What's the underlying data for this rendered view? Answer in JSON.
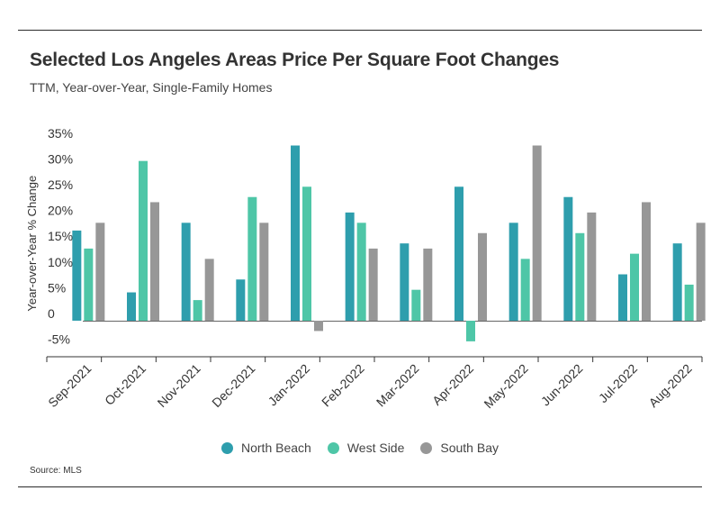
{
  "title": "Selected Los Angeles Areas Price Per Square Foot Changes",
  "subtitle": "TTM, Year-over-Year, Single-Family Homes",
  "source": "Source:  MLS",
  "colors": {
    "north_beach": "#2e9ead",
    "west_side": "#4ec6a7",
    "south_bay": "#979797",
    "axis": "#333333"
  },
  "chart_data": {
    "type": "bar",
    "ylabel": "Year-over-Year % Change",
    "ylim": [
      -7,
      37
    ],
    "yticks": [
      -5,
      0,
      5,
      10,
      15,
      20,
      25,
      30,
      35
    ],
    "ytick_labels": [
      "-5%",
      "0",
      "5%",
      "10%",
      "15%",
      "20%",
      "25%",
      "30%",
      "35%"
    ],
    "categories": [
      "Sep-2021",
      "Oct-2021",
      "Nov-2021",
      "Dec-2021",
      "Jan-2022",
      "Feb-2022",
      "Mar-2022",
      "Apr-2022",
      "May-2022",
      "Jun-2022",
      "Jul-2022",
      "Aug-2022"
    ],
    "series": [
      {
        "name": "North Beach",
        "color": "#2e9ead",
        "values": [
          17.5,
          5.5,
          19,
          8,
          34,
          21,
          15,
          26,
          19,
          24,
          9,
          15
        ]
      },
      {
        "name": "West Side",
        "color": "#4ec6a7",
        "values": [
          14,
          31,
          4,
          24,
          26,
          19,
          6,
          -4,
          12,
          17,
          13,
          7
        ]
      },
      {
        "name": "South Bay",
        "color": "#979797",
        "values": [
          19,
          23,
          12,
          19,
          -2,
          14,
          14,
          17,
          34,
          21,
          23,
          19
        ]
      }
    ],
    "legend": "bottom-center",
    "grid": false
  }
}
